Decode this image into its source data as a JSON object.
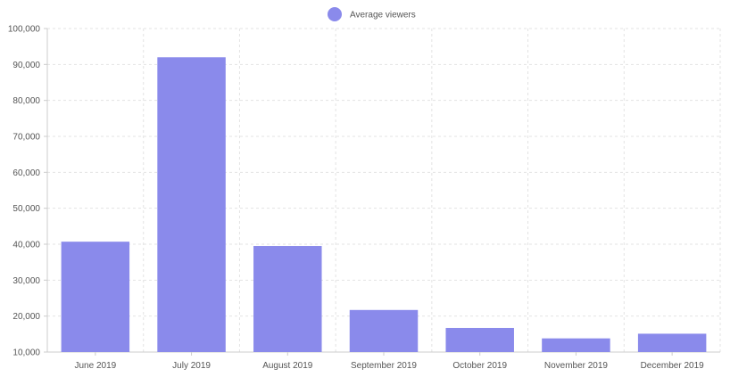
{
  "chart_data": {
    "type": "bar",
    "categories": [
      "June 2019",
      "July 2019",
      "August 2019",
      "September 2019",
      "October 2019",
      "November 2019",
      "December 2019"
    ],
    "series": [
      {
        "name": "Average viewers",
        "values": [
          40700,
          92000,
          39500,
          21700,
          16700,
          13800,
          15100
        ],
        "color": "#8a8aeb"
      }
    ],
    "ylim": [
      10000,
      100000
    ],
    "yticks": [
      10000,
      20000,
      30000,
      40000,
      50000,
      60000,
      70000,
      80000,
      90000,
      100000
    ],
    "ytick_labels": [
      "10,000",
      "20,000",
      "30,000",
      "40,000",
      "50,000",
      "60,000",
      "70,000",
      "80,000",
      "90,000",
      "100,000"
    ],
    "grid": true,
    "legend_position": "top-center",
    "title": "",
    "xlabel": "",
    "ylabel": ""
  }
}
